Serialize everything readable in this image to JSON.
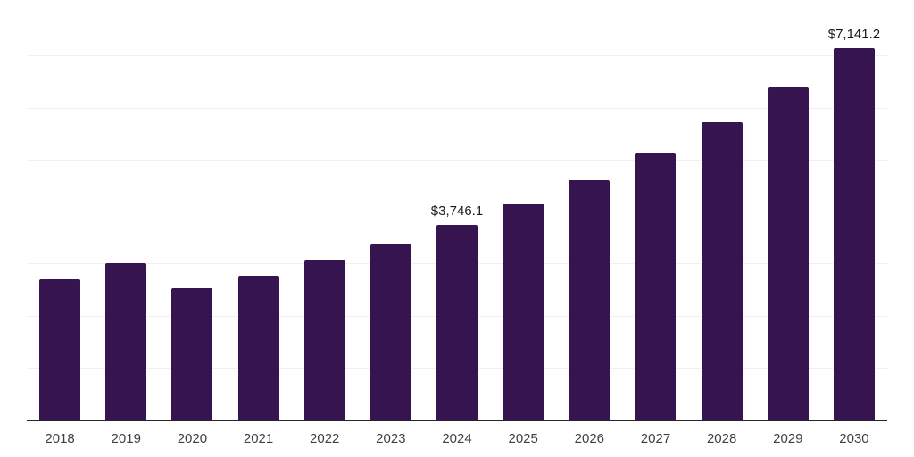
{
  "chart_data": {
    "type": "bar",
    "title": "",
    "xlabel": "",
    "ylabel": "",
    "categories": [
      "2018",
      "2019",
      "2020",
      "2021",
      "2022",
      "2023",
      "2024",
      "2025",
      "2026",
      "2027",
      "2028",
      "2029",
      "2030"
    ],
    "values": [
      2690,
      3000,
      2520,
      2760,
      3065,
      3375,
      3746.1,
      4150,
      4600,
      5140,
      5720,
      6390,
      7141.2
    ],
    "value_labels": {
      "2024": "$3,746.1",
      "2030": "$7,141.2"
    },
    "ylim": [
      0,
      8000
    ],
    "gridline_step": 1000,
    "grid": "horizontal",
    "legend": "none",
    "y_tick_labels_visible": false
  },
  "colors": {
    "bar": "#351450",
    "axis": "#262626",
    "gridline": "#f0f0f0",
    "tick_label": "#404040",
    "value_label": "#1a1a1a",
    "background": "#ffffff"
  }
}
